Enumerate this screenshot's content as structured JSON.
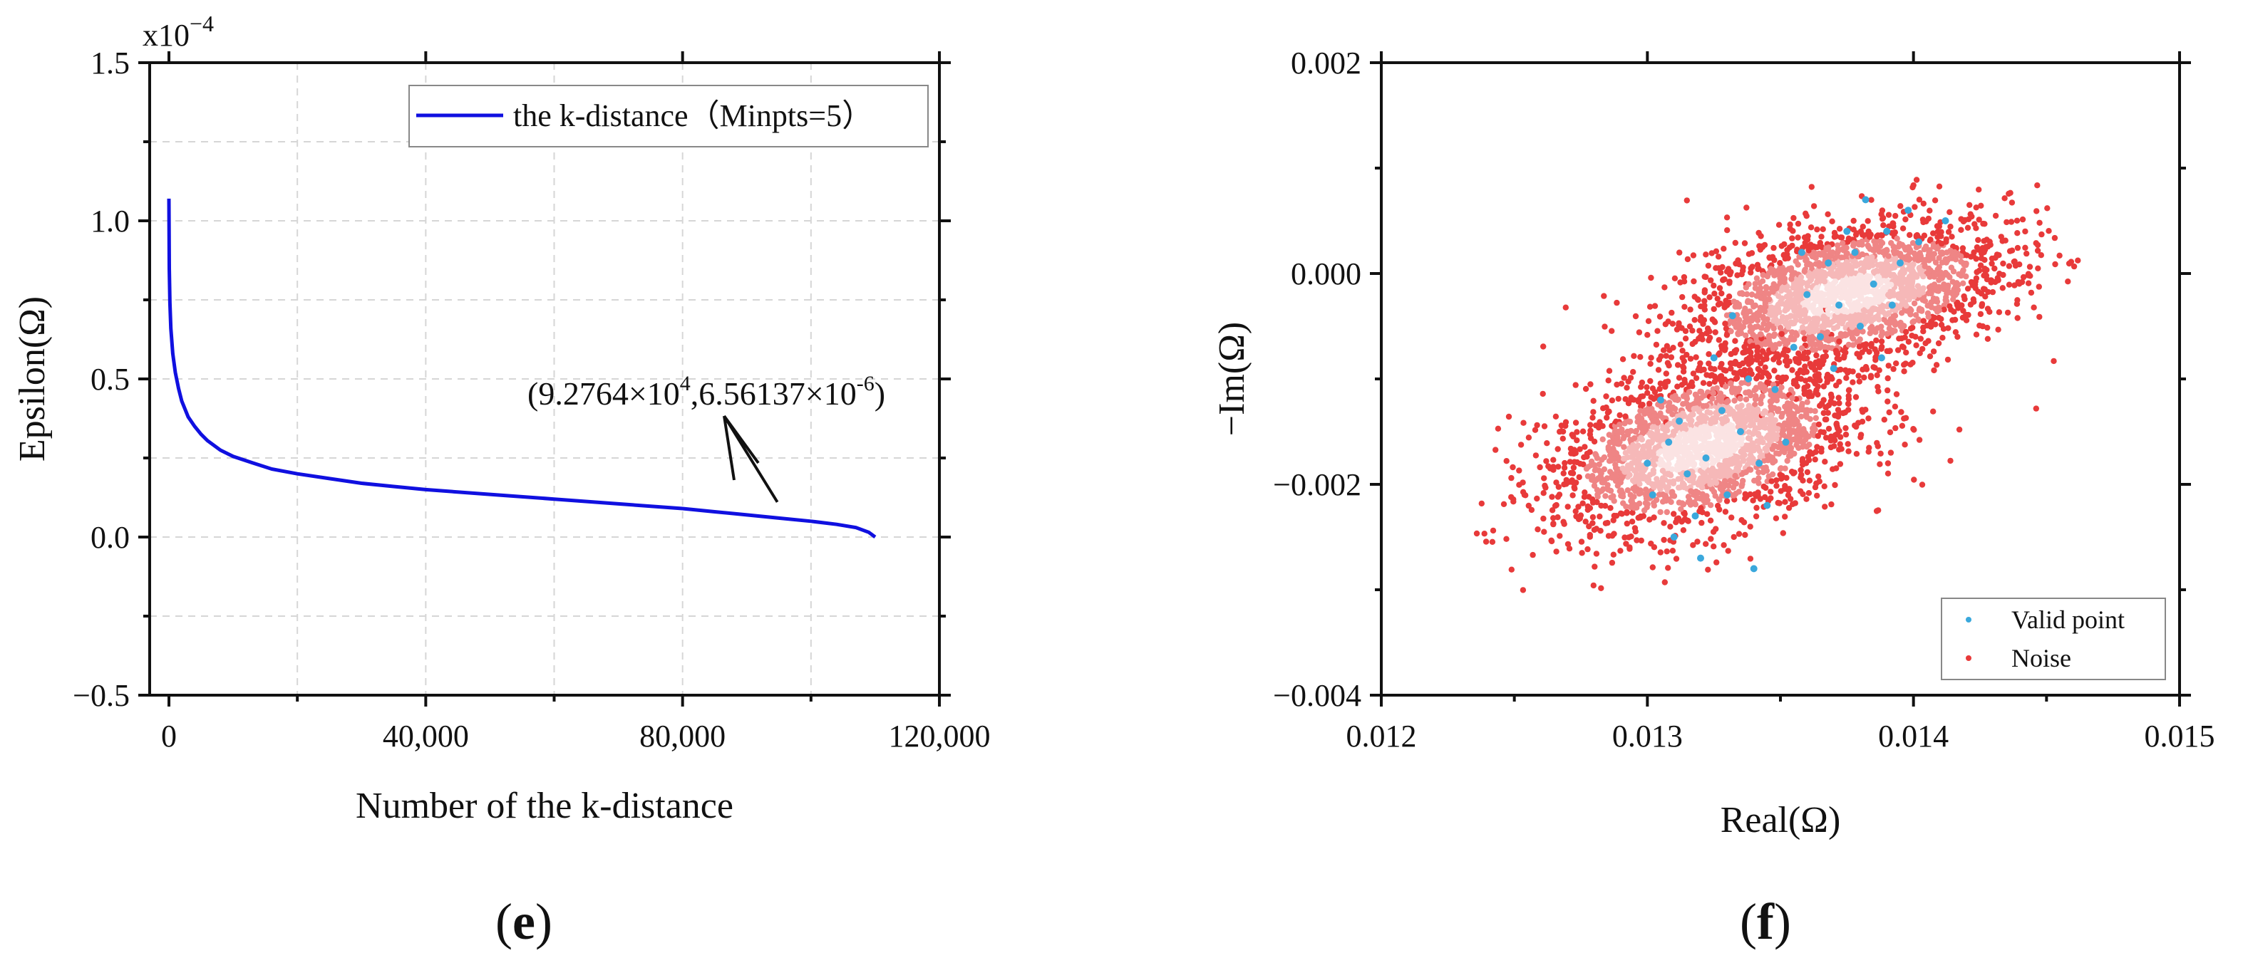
{
  "chart_data": [
    {
      "panel_label": "e",
      "type": "line",
      "title": "",
      "xlabel": "Number of the k-distance",
      "ylabel": "Epsilon(Ω)",
      "y_multiplier": {
        "base": "x10",
        "exp": "−4"
      },
      "xlim": [
        -3000,
        120000
      ],
      "ylim": [
        -0.5,
        1.5
      ],
      "x_ticks": [
        0,
        40000,
        80000,
        120000
      ],
      "x_tick_labels": [
        "0",
        "40,000",
        "80,000",
        "120,000"
      ],
      "y_ticks": [
        -0.5,
        0.0,
        0.5,
        1.0,
        1.5
      ],
      "y_tick_labels": [
        "−0.5",
        "0.0",
        "0.5",
        "1.0",
        "1.5"
      ],
      "grid": true,
      "legend": {
        "position": "top-right",
        "entries": [
          "the k-distance（Minpts=5）"
        ]
      },
      "series": [
        {
          "name": "the k-distance（Minpts=5）",
          "color": "#1010e0",
          "x": [
            0,
            50,
            150,
            300,
            600,
            1000,
            1500,
            2000,
            3000,
            4000,
            5000,
            6000,
            8000,
            10000,
            13000,
            16000,
            20000,
            25000,
            30000,
            35000,
            40000,
            50000,
            60000,
            70000,
            80000,
            85000,
            90000,
            95000,
            100000,
            104000,
            107000,
            109000,
            110000
          ],
          "y": [
            1.07,
            0.85,
            0.74,
            0.66,
            0.58,
            0.52,
            0.47,
            0.43,
            0.38,
            0.35,
            0.325,
            0.305,
            0.275,
            0.255,
            0.235,
            0.215,
            0.2,
            0.185,
            0.17,
            0.16,
            0.15,
            0.135,
            0.12,
            0.105,
            0.09,
            0.08,
            0.07,
            0.06,
            0.05,
            0.04,
            0.03,
            0.015,
            0.0
          ]
        }
      ],
      "annotation": {
        "text_main": "(9.2764×10",
        "text_sup1": "4",
        "text_mid": ",6.56137×10",
        "text_sup2": "-6",
        "text_end": ")",
        "point": [
          92764,
          0.0656
        ]
      }
    },
    {
      "panel_label": "f",
      "type": "scatter",
      "title": "",
      "xlabel": "Real(Ω)",
      "ylabel": "−Im(Ω)",
      "xlim": [
        0.012,
        0.015
      ],
      "ylim": [
        -0.004,
        0.002
      ],
      "x_ticks": [
        0.012,
        0.013,
        0.014,
        0.015
      ],
      "x_tick_labels": [
        "0.012",
        "0.013",
        "0.014",
        "0.015"
      ],
      "y_ticks": [
        -0.004,
        -0.002,
        0.0,
        0.002
      ],
      "y_tick_labels": [
        "−0.004",
        "−0.002",
        "0.000",
        "0.002"
      ],
      "grid": false,
      "legend": {
        "position": "bottom-right",
        "entries": [
          "Valid point",
          "Noise"
        ]
      },
      "series": [
        {
          "name": "Noise",
          "color": "#e83a3a",
          "distribution": "bivariate cloud",
          "clusters": [
            {
              "center": [
                0.0132,
                -0.00165
              ],
              "spread": [
                0.00032,
                0.00052
              ]
            },
            {
              "center": [
                0.01375,
                -0.0002
              ],
              "spread": [
                0.00033,
                0.00045
              ]
            }
          ],
          "x_range": [
            0.01235,
            0.01475
          ],
          "y_range": [
            -0.0031,
            0.0012
          ]
        },
        {
          "name": "Valid point",
          "color": "#3aa8dc",
          "points": [
            [
              0.01315,
              -0.0019
            ],
            [
              0.01322,
              -0.00175
            ],
            [
              0.0133,
              -0.0021
            ],
            [
              0.01308,
              -0.0016
            ],
            [
              0.01335,
              -0.0015
            ],
            [
              0.01318,
              -0.0023
            ],
            [
              0.01342,
              -0.0018
            ],
            [
              0.01305,
              -0.0012
            ],
            [
              0.01328,
              -0.0013
            ],
            [
              0.01345,
              -0.0022
            ],
            [
              0.0131,
              -0.0025
            ],
            [
              0.01338,
              -0.001
            ],
            [
              0.01325,
              -0.0008
            ],
            [
              0.0132,
              -0.0027
            ],
            [
              0.01348,
              -0.0011
            ],
            [
              0.01312,
              -0.0014
            ],
            [
              0.01352,
              -0.0016
            ],
            [
              0.01302,
              -0.0021
            ],
            [
              0.01372,
              -0.0003
            ],
            [
              0.01385,
              -0.0001
            ],
            [
              0.01378,
              0.0002
            ],
            [
              0.0139,
              0.0004
            ],
            [
              0.01365,
              -0.0006
            ],
            [
              0.01395,
              0.0001
            ],
            [
              0.0138,
              -0.0005
            ],
            [
              0.01398,
              0.0006
            ],
            [
              0.01368,
              0.0001
            ],
            [
              0.01388,
              -0.0008
            ],
            [
              0.01375,
              0.0004
            ],
            [
              0.0136,
              -0.0002
            ],
            [
              0.01402,
              0.0003
            ],
            [
              0.01382,
              0.0007
            ],
            [
              0.01392,
              -0.0003
            ],
            [
              0.0137,
              -0.0009
            ],
            [
              0.01358,
              0.0002
            ],
            [
              0.01412,
              0.0005
            ],
            [
              0.01332,
              -0.0004
            ],
            [
              0.01355,
              -0.0007
            ],
            [
              0.0134,
              -0.0028
            ],
            [
              0.013,
              -0.0018
            ]
          ]
        }
      ]
    }
  ],
  "panels": {
    "e_label": "(e)",
    "f_label": "(f)",
    "e_label_letter": "e",
    "f_label_letter": "f"
  }
}
